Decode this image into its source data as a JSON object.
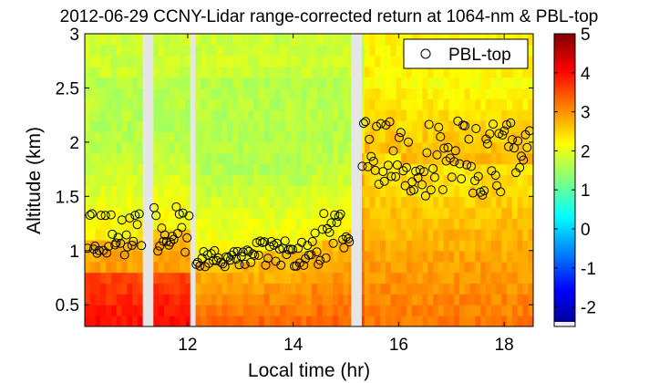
{
  "chart_data": {
    "type": "heatmap",
    "title": "2012-06-29 CCNY-Lidar range-corrected return at 1064-nm & PBL-top",
    "xlabel": "Local time (hr)",
    "ylabel": "Altitude (km)",
    "xlim": [
      10.05,
      18.55
    ],
    "ylim": [
      0.3,
      3.0
    ],
    "x_ticks": [
      12,
      14,
      16,
      18
    ],
    "x_tick_labels": [
      "12",
      "14",
      "16",
      "18"
    ],
    "y_ticks": [
      0.5,
      1.0,
      1.5,
      2.0,
      2.5,
      3.0
    ],
    "y_tick_labels": [
      "0.5",
      "1",
      "1.5",
      "2",
      "2.5",
      "3"
    ],
    "colorbar": {
      "range": [
        -2.5,
        5
      ],
      "ticks": [
        -2,
        -1,
        0,
        1,
        2,
        3,
        4,
        5
      ],
      "tick_labels": [
        "-2",
        "-1",
        "0",
        "1",
        "2",
        "3",
        "4",
        "5"
      ],
      "colormap": [
        "#00008f",
        "#0000ff",
        "#0080ff",
        "#00ffff",
        "#80ff80",
        "#ffff00",
        "#ff8000",
        "#ff0000",
        "#800000"
      ]
    },
    "data_gaps_hr": [
      [
        11.15,
        11.35
      ],
      [
        12.05,
        12.15
      ],
      [
        15.1,
        15.3
      ]
    ],
    "legend": {
      "label": "PBL-top",
      "placement": "top-right",
      "marker": "open-circle"
    },
    "pbl_segments": [
      {
        "t_start": 10.1,
        "t_end": 11.15,
        "mean_km": 1.15,
        "spread_km": 0.2
      },
      {
        "t_start": 11.35,
        "t_end": 12.05,
        "mean_km": 1.2,
        "spread_km": 0.22
      },
      {
        "t_start": 12.15,
        "t_end": 13.3,
        "mean_km": 0.93,
        "spread_km": 0.08
      },
      {
        "t_start": 13.3,
        "t_end": 14.4,
        "mean_km": 0.97,
        "spread_km": 0.12
      },
      {
        "t_start": 14.4,
        "t_end": 15.1,
        "mean_km": 1.1,
        "spread_km": 0.25
      },
      {
        "t_start": 15.3,
        "t_end": 16.0,
        "mean_km": 1.9,
        "spread_km": 0.3
      },
      {
        "t_start": 16.0,
        "t_end": 18.5,
        "mean_km": 1.85,
        "spread_km": 0.35
      }
    ]
  }
}
